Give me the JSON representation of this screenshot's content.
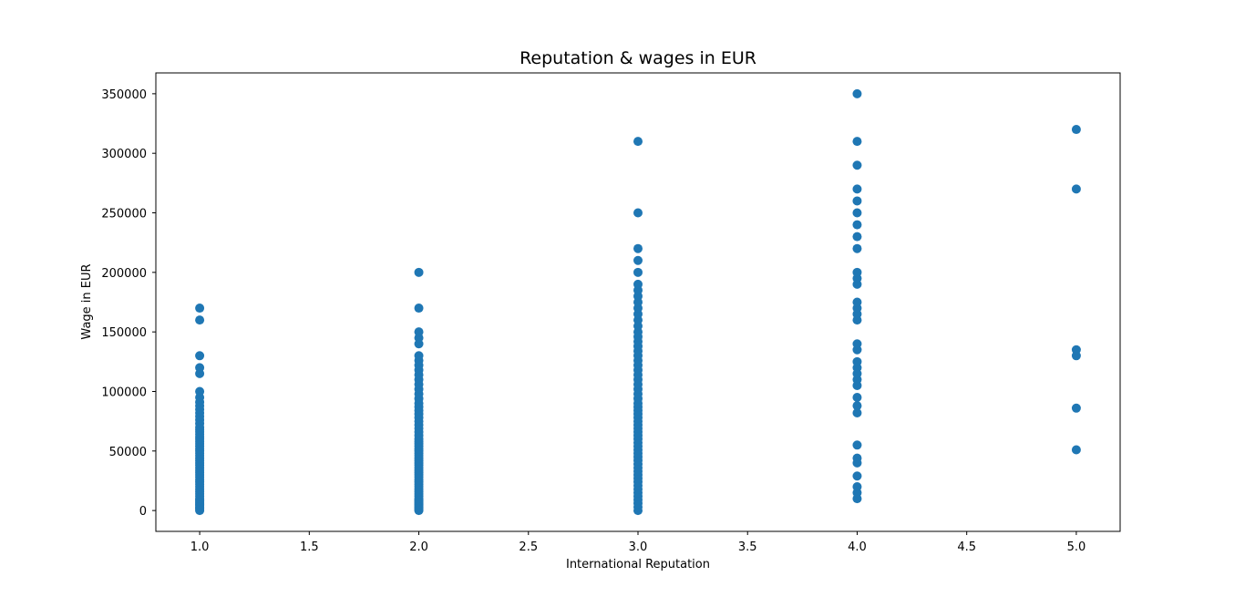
{
  "chart_data": {
    "type": "scatter",
    "title": "Reputation & wages in EUR",
    "xlabel": "International Reputation",
    "ylabel": "Wage in EUR",
    "xlim": [
      0.8,
      5.2
    ],
    "ylim": [
      -17500,
      367500
    ],
    "x_ticks": [
      1.0,
      1.5,
      2.0,
      2.5,
      3.0,
      3.5,
      4.0,
      4.5,
      5.0
    ],
    "x_tick_labels": [
      "1.0",
      "1.5",
      "2.0",
      "2.5",
      "3.0",
      "3.5",
      "4.0",
      "4.5",
      "5.0"
    ],
    "y_ticks": [
      0,
      50000,
      100000,
      150000,
      200000,
      250000,
      300000,
      350000
    ],
    "y_tick_labels": [
      "0",
      "50000",
      "100000",
      "150000",
      "200000",
      "250000",
      "300000",
      "350000"
    ],
    "grid": false,
    "color": "#1f77b4",
    "points": [
      {
        "x": 1,
        "y": 0
      },
      {
        "x": 1,
        "y": 1000
      },
      {
        "x": 1,
        "y": 2000
      },
      {
        "x": 1,
        "y": 3000
      },
      {
        "x": 1,
        "y": 4000
      },
      {
        "x": 1,
        "y": 5000
      },
      {
        "x": 1,
        "y": 6000
      },
      {
        "x": 1,
        "y": 7000
      },
      {
        "x": 1,
        "y": 8000
      },
      {
        "x": 1,
        "y": 9000
      },
      {
        "x": 1,
        "y": 10000
      },
      {
        "x": 1,
        "y": 12000
      },
      {
        "x": 1,
        "y": 14000
      },
      {
        "x": 1,
        "y": 16000
      },
      {
        "x": 1,
        "y": 18000
      },
      {
        "x": 1,
        "y": 20000
      },
      {
        "x": 1,
        "y": 22000
      },
      {
        "x": 1,
        "y": 24000
      },
      {
        "x": 1,
        "y": 26000
      },
      {
        "x": 1,
        "y": 28000
      },
      {
        "x": 1,
        "y": 30000
      },
      {
        "x": 1,
        "y": 32000
      },
      {
        "x": 1,
        "y": 34000
      },
      {
        "x": 1,
        "y": 36000
      },
      {
        "x": 1,
        "y": 38000
      },
      {
        "x": 1,
        "y": 40000
      },
      {
        "x": 1,
        "y": 42000
      },
      {
        "x": 1,
        "y": 44000
      },
      {
        "x": 1,
        "y": 46000
      },
      {
        "x": 1,
        "y": 48000
      },
      {
        "x": 1,
        "y": 50000
      },
      {
        "x": 1,
        "y": 52000
      },
      {
        "x": 1,
        "y": 54000
      },
      {
        "x": 1,
        "y": 56000
      },
      {
        "x": 1,
        "y": 58000
      },
      {
        "x": 1,
        "y": 60000
      },
      {
        "x": 1,
        "y": 62000
      },
      {
        "x": 1,
        "y": 64000
      },
      {
        "x": 1,
        "y": 66000
      },
      {
        "x": 1,
        "y": 68000
      },
      {
        "x": 1,
        "y": 70000
      },
      {
        "x": 1,
        "y": 73000
      },
      {
        "x": 1,
        "y": 76000
      },
      {
        "x": 1,
        "y": 79000
      },
      {
        "x": 1,
        "y": 82000
      },
      {
        "x": 1,
        "y": 85000
      },
      {
        "x": 1,
        "y": 88000
      },
      {
        "x": 1,
        "y": 91000
      },
      {
        "x": 1,
        "y": 95000
      },
      {
        "x": 1,
        "y": 100000
      },
      {
        "x": 1,
        "y": 115000
      },
      {
        "x": 1,
        "y": 120000
      },
      {
        "x": 1,
        "y": 130000
      },
      {
        "x": 1,
        "y": 160000
      },
      {
        "x": 1,
        "y": 170000
      },
      {
        "x": 2,
        "y": 0
      },
      {
        "x": 2,
        "y": 1000
      },
      {
        "x": 2,
        "y": 2000
      },
      {
        "x": 2,
        "y": 3000
      },
      {
        "x": 2,
        "y": 4000
      },
      {
        "x": 2,
        "y": 5000
      },
      {
        "x": 2,
        "y": 6000
      },
      {
        "x": 2,
        "y": 7000
      },
      {
        "x": 2,
        "y": 8000
      },
      {
        "x": 2,
        "y": 9000
      },
      {
        "x": 2,
        "y": 10000
      },
      {
        "x": 2,
        "y": 12000
      },
      {
        "x": 2,
        "y": 14000
      },
      {
        "x": 2,
        "y": 16000
      },
      {
        "x": 2,
        "y": 18000
      },
      {
        "x": 2,
        "y": 20000
      },
      {
        "x": 2,
        "y": 22000
      },
      {
        "x": 2,
        "y": 24000
      },
      {
        "x": 2,
        "y": 26000
      },
      {
        "x": 2,
        "y": 28000
      },
      {
        "x": 2,
        "y": 30000
      },
      {
        "x": 2,
        "y": 32000
      },
      {
        "x": 2,
        "y": 34000
      },
      {
        "x": 2,
        "y": 36000
      },
      {
        "x": 2,
        "y": 38000
      },
      {
        "x": 2,
        "y": 40000
      },
      {
        "x": 2,
        "y": 42000
      },
      {
        "x": 2,
        "y": 44000
      },
      {
        "x": 2,
        "y": 46000
      },
      {
        "x": 2,
        "y": 48000
      },
      {
        "x": 2,
        "y": 50000
      },
      {
        "x": 2,
        "y": 52000
      },
      {
        "x": 2,
        "y": 54000
      },
      {
        "x": 2,
        "y": 56000
      },
      {
        "x": 2,
        "y": 58000
      },
      {
        "x": 2,
        "y": 60000
      },
      {
        "x": 2,
        "y": 63000
      },
      {
        "x": 2,
        "y": 66000
      },
      {
        "x": 2,
        "y": 69000
      },
      {
        "x": 2,
        "y": 72000
      },
      {
        "x": 2,
        "y": 75000
      },
      {
        "x": 2,
        "y": 78000
      },
      {
        "x": 2,
        "y": 81000
      },
      {
        "x": 2,
        "y": 84000
      },
      {
        "x": 2,
        "y": 87000
      },
      {
        "x": 2,
        "y": 90000
      },
      {
        "x": 2,
        "y": 94000
      },
      {
        "x": 2,
        "y": 98000
      },
      {
        "x": 2,
        "y": 102000
      },
      {
        "x": 2,
        "y": 106000
      },
      {
        "x": 2,
        "y": 110000
      },
      {
        "x": 2,
        "y": 114000
      },
      {
        "x": 2,
        "y": 118000
      },
      {
        "x": 2,
        "y": 122000
      },
      {
        "x": 2,
        "y": 126000
      },
      {
        "x": 2,
        "y": 130000
      },
      {
        "x": 2,
        "y": 140000
      },
      {
        "x": 2,
        "y": 145000
      },
      {
        "x": 2,
        "y": 150000
      },
      {
        "x": 2,
        "y": 170000
      },
      {
        "x": 2,
        "y": 200000
      },
      {
        "x": 3,
        "y": 0
      },
      {
        "x": 3,
        "y": 3000
      },
      {
        "x": 3,
        "y": 6000
      },
      {
        "x": 3,
        "y": 9000
      },
      {
        "x": 3,
        "y": 12000
      },
      {
        "x": 3,
        "y": 15000
      },
      {
        "x": 3,
        "y": 18000
      },
      {
        "x": 3,
        "y": 21000
      },
      {
        "x": 3,
        "y": 24000
      },
      {
        "x": 3,
        "y": 27000
      },
      {
        "x": 3,
        "y": 30000
      },
      {
        "x": 3,
        "y": 33000
      },
      {
        "x": 3,
        "y": 36000
      },
      {
        "x": 3,
        "y": 39000
      },
      {
        "x": 3,
        "y": 42000
      },
      {
        "x": 3,
        "y": 45000
      },
      {
        "x": 3,
        "y": 48000
      },
      {
        "x": 3,
        "y": 51000
      },
      {
        "x": 3,
        "y": 54000
      },
      {
        "x": 3,
        "y": 57000
      },
      {
        "x": 3,
        "y": 60000
      },
      {
        "x": 3,
        "y": 63000
      },
      {
        "x": 3,
        "y": 66000
      },
      {
        "x": 3,
        "y": 69000
      },
      {
        "x": 3,
        "y": 72000
      },
      {
        "x": 3,
        "y": 75000
      },
      {
        "x": 3,
        "y": 78000
      },
      {
        "x": 3,
        "y": 81000
      },
      {
        "x": 3,
        "y": 84000
      },
      {
        "x": 3,
        "y": 87000
      },
      {
        "x": 3,
        "y": 90000
      },
      {
        "x": 3,
        "y": 94000
      },
      {
        "x": 3,
        "y": 98000
      },
      {
        "x": 3,
        "y": 102000
      },
      {
        "x": 3,
        "y": 106000
      },
      {
        "x": 3,
        "y": 110000
      },
      {
        "x": 3,
        "y": 114000
      },
      {
        "x": 3,
        "y": 118000
      },
      {
        "x": 3,
        "y": 122000
      },
      {
        "x": 3,
        "y": 126000
      },
      {
        "x": 3,
        "y": 130000
      },
      {
        "x": 3,
        "y": 134000
      },
      {
        "x": 3,
        "y": 138000
      },
      {
        "x": 3,
        "y": 142000
      },
      {
        "x": 3,
        "y": 146000
      },
      {
        "x": 3,
        "y": 150000
      },
      {
        "x": 3,
        "y": 155000
      },
      {
        "x": 3,
        "y": 160000
      },
      {
        "x": 3,
        "y": 165000
      },
      {
        "x": 3,
        "y": 170000
      },
      {
        "x": 3,
        "y": 175000
      },
      {
        "x": 3,
        "y": 180000
      },
      {
        "x": 3,
        "y": 185000
      },
      {
        "x": 3,
        "y": 190000
      },
      {
        "x": 3,
        "y": 200000
      },
      {
        "x": 3,
        "y": 210000
      },
      {
        "x": 3,
        "y": 220000
      },
      {
        "x": 3,
        "y": 250000
      },
      {
        "x": 3,
        "y": 310000
      },
      {
        "x": 4,
        "y": 10000
      },
      {
        "x": 4,
        "y": 15000
      },
      {
        "x": 4,
        "y": 20000
      },
      {
        "x": 4,
        "y": 29000
      },
      {
        "x": 4,
        "y": 40000
      },
      {
        "x": 4,
        "y": 44000
      },
      {
        "x": 4,
        "y": 55000
      },
      {
        "x": 4,
        "y": 82000
      },
      {
        "x": 4,
        "y": 88000
      },
      {
        "x": 4,
        "y": 95000
      },
      {
        "x": 4,
        "y": 105000
      },
      {
        "x": 4,
        "y": 110000
      },
      {
        "x": 4,
        "y": 115000
      },
      {
        "x": 4,
        "y": 120000
      },
      {
        "x": 4,
        "y": 125000
      },
      {
        "x": 4,
        "y": 135000
      },
      {
        "x": 4,
        "y": 140000
      },
      {
        "x": 4,
        "y": 160000
      },
      {
        "x": 4,
        "y": 165000
      },
      {
        "x": 4,
        "y": 170000
      },
      {
        "x": 4,
        "y": 175000
      },
      {
        "x": 4,
        "y": 190000
      },
      {
        "x": 4,
        "y": 195000
      },
      {
        "x": 4,
        "y": 200000
      },
      {
        "x": 4,
        "y": 220000
      },
      {
        "x": 4,
        "y": 230000
      },
      {
        "x": 4,
        "y": 240000
      },
      {
        "x": 4,
        "y": 250000
      },
      {
        "x": 4,
        "y": 260000
      },
      {
        "x": 4,
        "y": 270000
      },
      {
        "x": 4,
        "y": 290000
      },
      {
        "x": 4,
        "y": 310000
      },
      {
        "x": 4,
        "y": 350000
      },
      {
        "x": 5,
        "y": 51000
      },
      {
        "x": 5,
        "y": 86000
      },
      {
        "x": 5,
        "y": 130000
      },
      {
        "x": 5,
        "y": 135000
      },
      {
        "x": 5,
        "y": 270000
      },
      {
        "x": 5,
        "y": 320000
      }
    ]
  }
}
